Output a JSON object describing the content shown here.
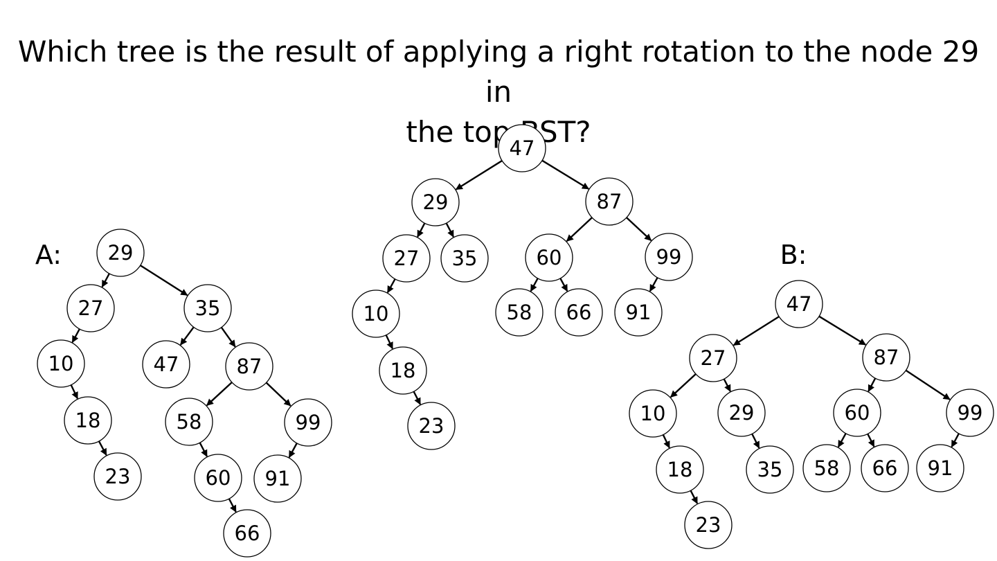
{
  "question": {
    "line1": "Which tree is the result of applying a right rotation to the node 29 in",
    "line2": "the top BST?"
  },
  "trees": {
    "top": {
      "label": "",
      "nodes": [
        "47",
        "29",
        "87",
        "27",
        "35",
        "60",
        "99",
        "10",
        "58",
        "66",
        "91",
        "18",
        "23"
      ],
      "edges": [
        [
          "47",
          "29"
        ],
        [
          "47",
          "87"
        ],
        [
          "29",
          "27"
        ],
        [
          "29",
          "35"
        ],
        [
          "87",
          "60"
        ],
        [
          "87",
          "99"
        ],
        [
          "27",
          "10"
        ],
        [
          "60",
          "58"
        ],
        [
          "60",
          "66"
        ],
        [
          "99",
          "91"
        ],
        [
          "10",
          "18"
        ],
        [
          "18",
          "23"
        ]
      ]
    },
    "a": {
      "label": "A:",
      "nodes": [
        "29",
        "27",
        "35",
        "10",
        "47",
        "87",
        "18",
        "58",
        "99",
        "23",
        "60",
        "91",
        "66"
      ],
      "edges": [
        [
          "29",
          "27"
        ],
        [
          "29",
          "35"
        ],
        [
          "27",
          "10"
        ],
        [
          "35",
          "47"
        ],
        [
          "35",
          "87"
        ],
        [
          "10",
          "18"
        ],
        [
          "87",
          "58"
        ],
        [
          "87",
          "99"
        ],
        [
          "18",
          "23"
        ],
        [
          "58",
          "60"
        ],
        [
          "99",
          "91"
        ],
        [
          "60",
          "66"
        ]
      ]
    },
    "b": {
      "label": "B:",
      "nodes": [
        "47",
        "27",
        "87",
        "10",
        "29",
        "60",
        "99",
        "18",
        "35",
        "58",
        "66",
        "91",
        "23"
      ],
      "edges": [
        [
          "47",
          "27"
        ],
        [
          "47",
          "87"
        ],
        [
          "27",
          "10"
        ],
        [
          "27",
          "29"
        ],
        [
          "87",
          "60"
        ],
        [
          "87",
          "99"
        ],
        [
          "10",
          "18"
        ],
        [
          "29",
          "35"
        ],
        [
          "60",
          "58"
        ],
        [
          "60",
          "66"
        ],
        [
          "99",
          "91"
        ],
        [
          "18",
          "23"
        ]
      ]
    }
  },
  "colors": {
    "stroke": "#000000",
    "node_fill": "#ffffff",
    "background": "#ffffff"
  }
}
